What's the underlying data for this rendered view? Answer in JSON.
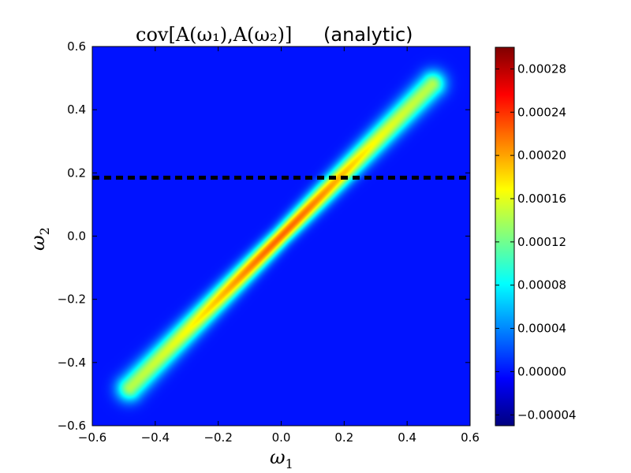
{
  "chart_data": {
    "type": "heatmap",
    "title": {
      "math": "cov[A(ω₁),A(ω₂)]",
      "text": "(analytic)"
    },
    "xlabel": {
      "symbol": "ω",
      "subscript": "1"
    },
    "ylabel": {
      "symbol": "ω",
      "subscript": "2"
    },
    "xlim": [
      -0.6,
      0.6
    ],
    "ylim": [
      -0.6,
      0.6
    ],
    "xticks": [
      -0.6,
      -0.4,
      -0.2,
      0.0,
      0.2,
      0.4,
      0.6
    ],
    "yticks": [
      -0.6,
      -0.4,
      -0.2,
      0.0,
      0.2,
      0.4,
      0.6
    ],
    "xtick_labels": [
      "−0.6",
      "−0.4",
      "−0.2",
      "0.0",
      "0.2",
      "0.4",
      "0.6"
    ],
    "ytick_labels": [
      "−0.6",
      "−0.4",
      "−0.2",
      "0.0",
      "0.2",
      "0.4",
      "0.6"
    ],
    "colormap": "jet",
    "colorbar": {
      "vmin": -5e-05,
      "vmax": 0.0003,
      "ticks": [
        -4e-05,
        0.0,
        4e-05,
        8e-05,
        0.00012,
        0.00016,
        0.0002,
        0.00024,
        0.00028
      ],
      "tick_labels": [
        "−0.00004",
        "0.00000",
        "0.00004",
        "0.00008",
        "0.00012",
        "0.00016",
        "0.00020",
        "0.00024",
        "0.00028"
      ]
    },
    "field": {
      "description_of_values": "covariance concentrated along diagonal ω1=ω2",
      "peak_value": 0.00022,
      "peak_location": [
        0.0,
        0.0
      ],
      "diagonal_extent": [
        -0.48,
        0.48
      ],
      "background_value": 0.0
    },
    "annotations": [
      {
        "type": "hline",
        "y": 0.185,
        "style": "dashed",
        "color": "#000000"
      }
    ],
    "grid": false
  }
}
